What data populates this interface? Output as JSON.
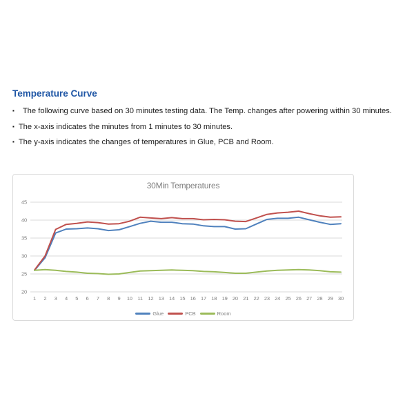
{
  "document": {
    "heading": "Temperature Curve",
    "bullets": [
      "The following curve based on 30 minutes testing data. The Temp. changes after powering within 30 minutes.",
      "The x-axis indicates the minutes from 1 minutes to 30 minutes.",
      "The y-axis indicates the changes of temperatures in Glue, PCB and Room."
    ],
    "heading_color": "#1F56A5",
    "bullet_icon": "▪"
  },
  "chart_data": {
    "type": "line",
    "title": "30Min Temperatures",
    "x": [
      1,
      2,
      3,
      4,
      5,
      6,
      7,
      8,
      9,
      10,
      11,
      12,
      13,
      14,
      15,
      16,
      17,
      18,
      19,
      20,
      21,
      22,
      23,
      24,
      25,
      26,
      27,
      28,
      29,
      30
    ],
    "series": [
      {
        "name": "Glue",
        "color": "#4F81BD",
        "values": [
          26,
          29.5,
          36.4,
          37.5,
          37.6,
          37.8,
          37.6,
          37.1,
          37.3,
          38.2,
          39.1,
          39.7,
          39.4,
          39.4,
          39.0,
          38.9,
          38.4,
          38.2,
          38.2,
          37.5,
          37.6,
          38.9,
          40.2,
          40.5,
          40.5,
          40.8,
          40.1,
          39.4,
          38.8,
          39.0
        ]
      },
      {
        "name": "PCB",
        "color": "#C0504D",
        "values": [
          26.1,
          30.0,
          37.4,
          38.8,
          39.1,
          39.5,
          39.3,
          38.9,
          39.0,
          39.7,
          40.8,
          40.6,
          40.4,
          40.7,
          40.4,
          40.4,
          40.1,
          40.2,
          40.1,
          39.7,
          39.6,
          40.6,
          41.6,
          42.0,
          42.2,
          42.5,
          41.8,
          41.2,
          40.8,
          40.9
        ]
      },
      {
        "name": "Room",
        "color": "#9BBB59",
        "values": [
          26.0,
          26.2,
          26.0,
          25.7,
          25.5,
          25.2,
          25.1,
          24.9,
          25.0,
          25.4,
          25.8,
          25.9,
          26.0,
          26.1,
          26.0,
          25.9,
          25.7,
          25.6,
          25.4,
          25.2,
          25.2,
          25.5,
          25.8,
          26.0,
          26.1,
          26.2,
          26.1,
          25.9,
          25.6,
          25.5
        ]
      }
    ],
    "ylim": [
      20,
      45
    ],
    "yticks": [
      20,
      25,
      30,
      35,
      40,
      45
    ],
    "grid": true,
    "legend_position": "bottom",
    "grid_color": "#d9d9d9",
    "label_color": "#808080"
  }
}
